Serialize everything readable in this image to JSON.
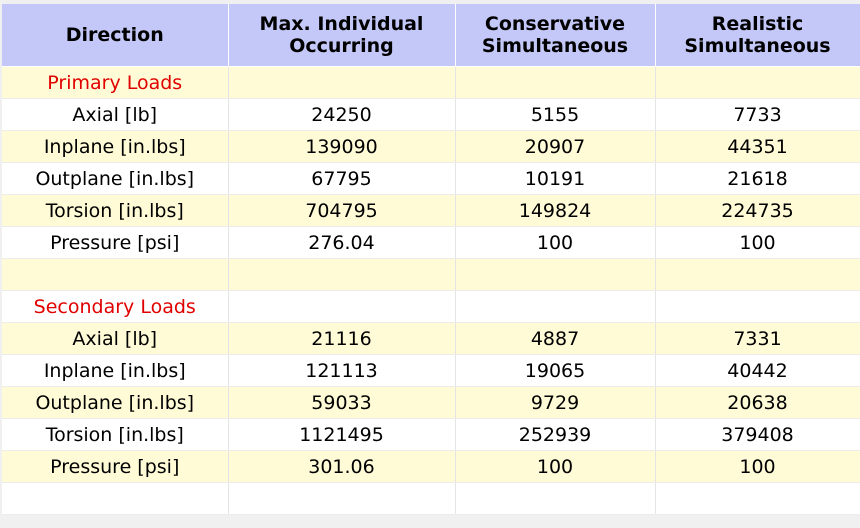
{
  "columns": [
    {
      "line1": "Direction",
      "line2": ""
    },
    {
      "line1": "Max. Individual",
      "line2": "Occurring"
    },
    {
      "line1": "Conservative",
      "line2": "Simultaneous"
    },
    {
      "line1": "Realistic",
      "line2": "Simultaneous"
    }
  ],
  "rows": [
    {
      "type": "section",
      "label": "Primary Loads",
      "values": [
        "",
        "",
        ""
      ]
    },
    {
      "type": "data",
      "label": "Axial [lb]",
      "values": [
        "24250",
        "5155",
        "7733"
      ]
    },
    {
      "type": "data",
      "label": "Inplane [in.lbs]",
      "values": [
        "139090",
        "20907",
        "44351"
      ]
    },
    {
      "type": "data",
      "label": "Outplane [in.lbs]",
      "values": [
        "67795",
        "10191",
        "21618"
      ]
    },
    {
      "type": "data",
      "label": "Torsion [in.lbs]",
      "values": [
        "704795",
        "149824",
        "224735"
      ]
    },
    {
      "type": "data",
      "label": "Pressure [psi]",
      "values": [
        "276.04",
        "100",
        "100"
      ]
    },
    {
      "type": "blank",
      "label": "",
      "values": [
        "",
        "",
        ""
      ]
    },
    {
      "type": "section",
      "label": "Secondary Loads",
      "values": [
        "",
        "",
        ""
      ]
    },
    {
      "type": "data",
      "label": "Axial [lb]",
      "values": [
        "21116",
        "4887",
        "7331"
      ]
    },
    {
      "type": "data",
      "label": "Inplane [in.lbs]",
      "values": [
        "121113",
        "19065",
        "40442"
      ]
    },
    {
      "type": "data",
      "label": "Outplane [in.lbs]",
      "values": [
        "59033",
        "9729",
        "20638"
      ]
    },
    {
      "type": "data",
      "label": "Torsion [in.lbs]",
      "values": [
        "1121495",
        "252939",
        "379408"
      ]
    },
    {
      "type": "data",
      "label": "Pressure [psi]",
      "values": [
        "301.06",
        "100",
        "100"
      ]
    },
    {
      "type": "blank",
      "label": "",
      "values": [
        "",
        "",
        ""
      ]
    }
  ],
  "colors": {
    "header_bg": "#c4c8f8",
    "row_alt_bg": "#fffbd6",
    "row_bg": "#ffffff",
    "section_text": "#e00000"
  }
}
